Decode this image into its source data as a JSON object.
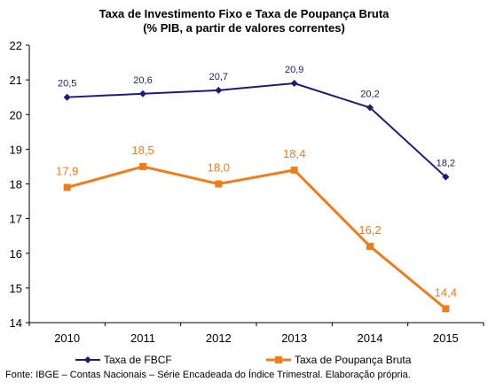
{
  "chart_data": {
    "type": "line",
    "title": "Taxa de Investimento Fixo e Taxa de Poupança Bruta",
    "subtitle": "(% PIB, a partir de valores correntes)",
    "x": [
      "2010",
      "2011",
      "2012",
      "2013",
      "2014",
      "2015"
    ],
    "y_ticks": [
      "14",
      "15",
      "16",
      "17",
      "18",
      "19",
      "20",
      "21",
      "22"
    ],
    "ylim": [
      14,
      22
    ],
    "grid": false,
    "legend_position": "bottom",
    "series": [
      {
        "name": "Taxa de FBCF",
        "values": [
          20.5,
          20.6,
          20.7,
          20.9,
          20.2,
          18.2
        ],
        "labels": [
          "20,5",
          "20,6",
          "20,7",
          "20,9",
          "20,2",
          "18,2"
        ],
        "color": "#1c1c7a",
        "marker": "diamond"
      },
      {
        "name": "Taxa de Poupança Bruta",
        "values": [
          17.9,
          18.5,
          18.0,
          18.4,
          16.2,
          14.4
        ],
        "labels": [
          "17,9",
          "18,5",
          "18,0",
          "18,4",
          "16,2",
          "14,4"
        ],
        "color": "#f07c1a",
        "marker": "square"
      }
    ]
  },
  "source_note": "Fonte: IBGE – Contas Nacionais – Série Encadeada do Índice Trimestral. Elaboração própria."
}
